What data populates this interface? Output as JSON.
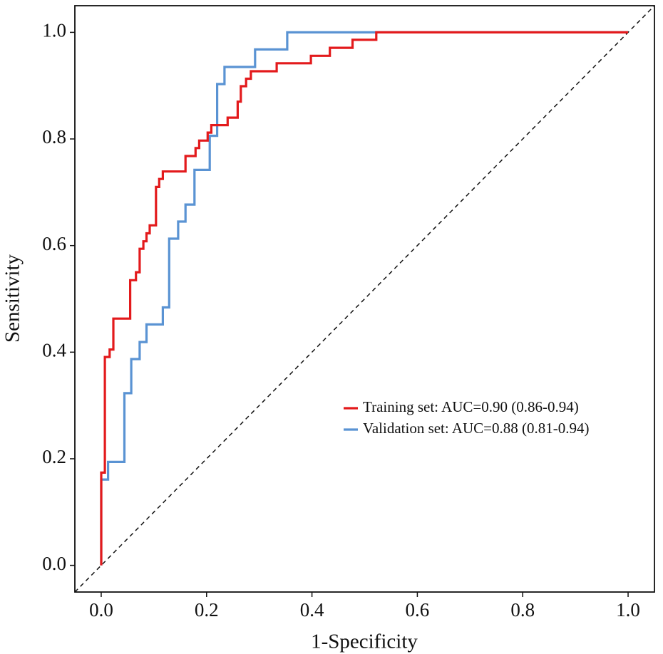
{
  "chart_data": {
    "type": "line",
    "xlabel": "1-Specificity",
    "ylabel": "Sensitivity",
    "xlim": [
      -0.05,
      1.05
    ],
    "ylim": [
      -0.05,
      1.05
    ],
    "xticks": [
      {
        "value": 0,
        "label": "0.0"
      },
      0.2,
      0.4,
      0.6,
      0.8,
      {
        "value": 1,
        "label": "1.0"
      }
    ],
    "yticks": [
      {
        "value": 0,
        "label": "0.0"
      },
      0.2,
      0.4,
      0.6,
      0.8,
      {
        "value": 1,
        "label": "1.0"
      }
    ],
    "grid": false,
    "legend_position": "right",
    "reference_line": true,
    "series": [
      {
        "name": "Validation set: AUC=0.88 (0.81-0.94)",
        "color": "#5a93d3",
        "x": [
          0,
          0,
          0.013,
          0.013,
          0.044,
          0.044,
          0.057,
          0.057,
          0.073,
          0.073,
          0.086,
          0.086,
          0.117,
          0.117,
          0.129,
          0.129,
          0.146,
          0.146,
          0.16,
          0.16,
          0.177,
          0.177,
          0.206,
          0.206,
          0.22,
          0.22,
          0.234,
          0.234,
          0.292,
          0.292,
          0.353,
          0.353,
          1
        ],
        "values": [
          0,
          0.161,
          0.161,
          0.194,
          0.194,
          0.323,
          0.323,
          0.387,
          0.387,
          0.419,
          0.419,
          0.452,
          0.452,
          0.484,
          0.484,
          0.613,
          0.613,
          0.645,
          0.645,
          0.677,
          0.677,
          0.742,
          0.742,
          0.806,
          0.806,
          0.903,
          0.903,
          0.935,
          0.935,
          0.968,
          0.968,
          1,
          1
        ]
      },
      {
        "name": "Training set: AUC=0.90 (0.86-0.94)",
        "color": "#e31a1c",
        "x": [
          0,
          0,
          0.007,
          0.007,
          0.016,
          0.016,
          0.023,
          0.023,
          0.055,
          0.055,
          0.066,
          0.066,
          0.073,
          0.073,
          0.08,
          0.08,
          0.086,
          0.086,
          0.092,
          0.092,
          0.104,
          0.104,
          0.11,
          0.11,
          0.117,
          0.117,
          0.16,
          0.16,
          0.179,
          0.179,
          0.186,
          0.186,
          0.202,
          0.202,
          0.209,
          0.209,
          0.24,
          0.24,
          0.259,
          0.259,
          0.265,
          0.265,
          0.275,
          0.275,
          0.284,
          0.284,
          0.333,
          0.333,
          0.398,
          0.398,
          0.434,
          0.434,
          0.477,
          0.477,
          0.522,
          0.522,
          1
        ],
        "values": [
          0,
          0.174,
          0.174,
          0.391,
          0.391,
          0.405,
          0.405,
          0.463,
          0.463,
          0.535,
          0.535,
          0.55,
          0.55,
          0.594,
          0.594,
          0.608,
          0.608,
          0.623,
          0.623,
          0.638,
          0.638,
          0.71,
          0.71,
          0.725,
          0.725,
          0.739,
          0.739,
          0.768,
          0.768,
          0.783,
          0.783,
          0.797,
          0.797,
          0.812,
          0.812,
          0.826,
          0.826,
          0.84,
          0.84,
          0.87,
          0.87,
          0.899,
          0.899,
          0.913,
          0.913,
          0.927,
          0.927,
          0.942,
          0.942,
          0.956,
          0.956,
          0.971,
          0.971,
          0.986,
          0.986,
          1,
          1
        ]
      }
    ]
  }
}
